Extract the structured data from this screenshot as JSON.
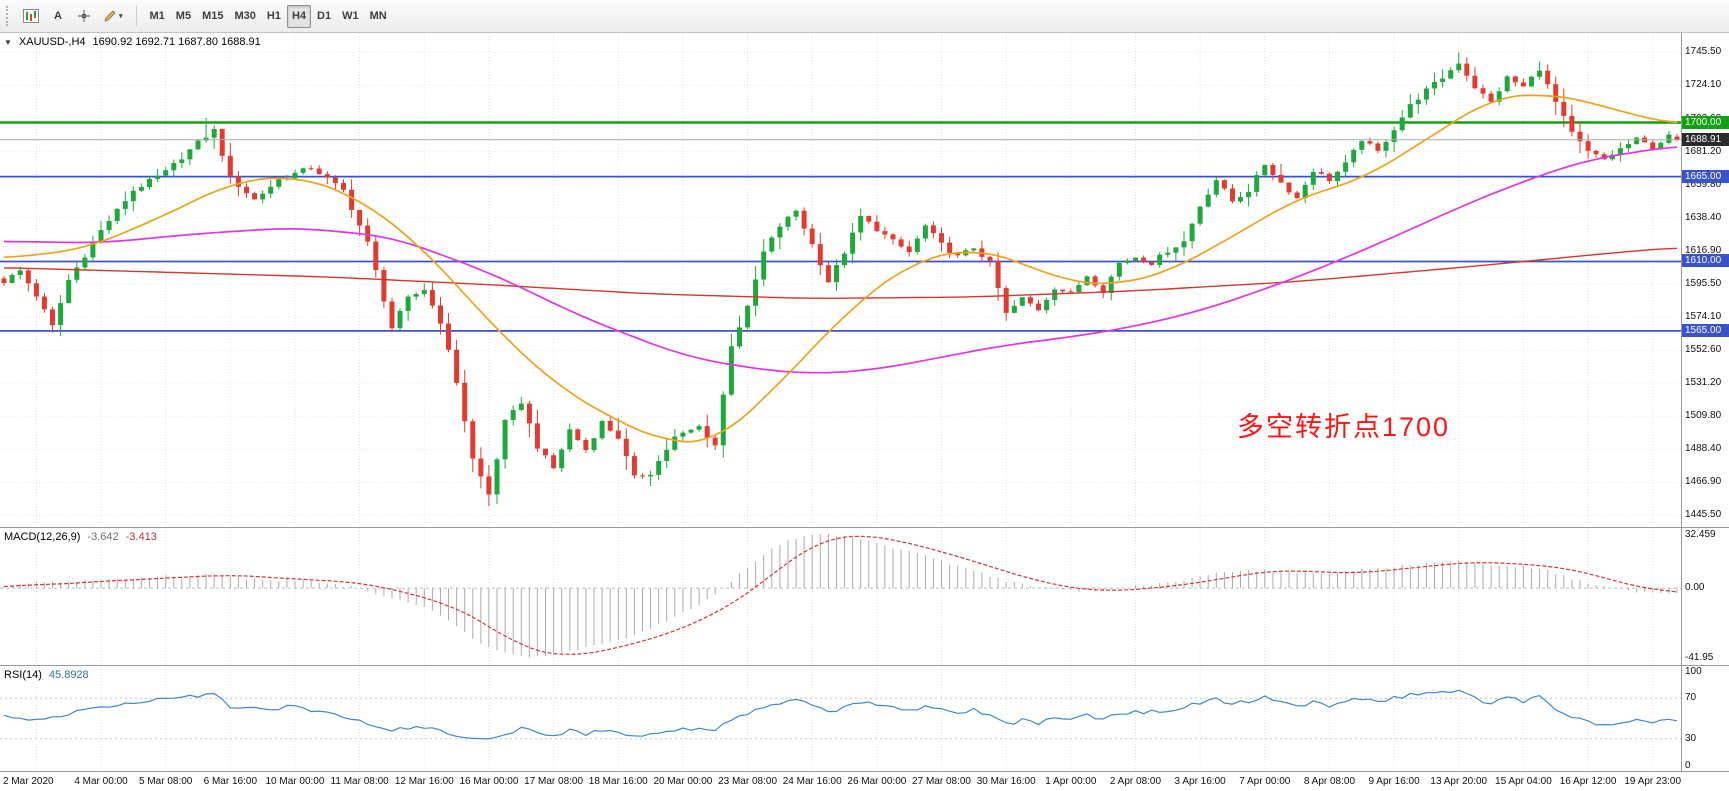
{
  "toolbar": {
    "text_tool_label": "A",
    "caret_glyph": "▾",
    "timeframes": [
      "M1",
      "M5",
      "M15",
      "M30",
      "H1",
      "H4",
      "D1",
      "W1",
      "MN"
    ],
    "active_timeframe": "H4"
  },
  "chart": {
    "dropdown_glyph": "▼",
    "symbol": "XAUUSD-,H4",
    "ohlc_text": "1690.92 1692.71 1687.80 1688.91",
    "annotation": {
      "text": "多空转折点1700",
      "color": "#fe1414"
    }
  },
  "levels": [
    {
      "price": 1700,
      "label": "1700.00",
      "color": "#11a211"
    },
    {
      "price": 1665,
      "label": "1665.00",
      "color": "#3a53cb"
    },
    {
      "price": 1610,
      "label": "1610.00",
      "color": "#3a53cb"
    },
    {
      "price": 1565,
      "label": "1565.00",
      "color": "#3a53cb"
    }
  ],
  "current_price": {
    "value": 1688.91,
    "label": "1688.91"
  },
  "price_axis": {
    "labels": [
      {
        "p": 1745.5,
        "t": "1745.50"
      },
      {
        "p": 1724.1,
        "t": "1724.10"
      },
      {
        "p": 1702.6,
        "t": "1702.60"
      },
      {
        "p": 1681.2,
        "t": "1681.20"
      },
      {
        "p": 1659.8,
        "t": "1659.80"
      },
      {
        "p": 1638.4,
        "t": "1638.40"
      },
      {
        "p": 1616.9,
        "t": "1616.90"
      },
      {
        "p": 1595.5,
        "t": "1595.50"
      },
      {
        "p": 1574.1,
        "t": "1574.10"
      },
      {
        "p": 1552.6,
        "t": "1552.60"
      },
      {
        "p": 1531.2,
        "t": "1531.20"
      },
      {
        "p": 1509.8,
        "t": "1509.80"
      },
      {
        "p": 1488.4,
        "t": "1488.40"
      },
      {
        "p": 1466.9,
        "t": "1466.90"
      },
      {
        "p": 1445.5,
        "t": "1445.50"
      }
    ]
  },
  "time_axis": {
    "labels": [
      "2 Mar 2020",
      "4 Mar 00:00",
      "5 Mar 08:00",
      "6 Mar 16:00",
      "10 Mar 00:00",
      "11 Mar 08:00",
      "12 Mar 16:00",
      "16 Mar 00:00",
      "17 Mar 08:00",
      "18 Mar 16:00",
      "20 Mar 00:00",
      "23 Mar 08:00",
      "24 Mar 16:00",
      "26 Mar 00:00",
      "27 Mar 08:00",
      "30 Mar 16:00",
      "1 Apr 00:00",
      "2 Apr 08:00",
      "3 Apr 16:00",
      "7 Apr 00:00",
      "8 Apr 08:00",
      "9 Apr 16:00",
      "13 Apr 20:00",
      "15 Apr 04:00",
      "16 Apr 12:00",
      "19 Apr 23:00"
    ]
  },
  "macd_panel": {
    "title": "MACD(12,26,9)",
    "value_main": "-3.642",
    "value_signal": "-3.413",
    "scale_labels": [
      {
        "v": 32.459,
        "t": "32.459"
      },
      {
        "v": 0,
        "t": "0.00"
      },
      {
        "v": -41.95,
        "t": "-41.95"
      }
    ]
  },
  "rsi_panel": {
    "title": "RSI(14)",
    "value": "45.8928",
    "levels": [
      70,
      30
    ],
    "scale_labels": [
      {
        "v": 100,
        "t": "100"
      },
      {
        "v": 70,
        "t": "70"
      },
      {
        "v": 30,
        "t": "30"
      },
      {
        "v": 0,
        "t": "0"
      }
    ]
  },
  "chart_data": {
    "type": "candlestick",
    "symbol": "XAUUSD-",
    "timeframe": "H4",
    "ohlc": {
      "open": 1690.92,
      "high": 1692.71,
      "low": 1687.8,
      "close": 1688.91
    },
    "num_candles": 208,
    "price_range": [
      1438,
      1758
    ],
    "y_ticks": [
      1745.5,
      1724.1,
      1702.6,
      1681.2,
      1659.8,
      1638.4,
      1616.9,
      1595.5,
      1574.1,
      1552.6,
      1531.2,
      1509.8,
      1488.4,
      1466.9,
      1445.5
    ],
    "x_tick_labels": [
      "2 Mar 2020",
      "4 Mar 00:00",
      "5 Mar 08:00",
      "6 Mar 16:00",
      "10 Mar 00:00",
      "11 Mar 08:00",
      "12 Mar 16:00",
      "16 Mar 00:00",
      "17 Mar 08:00",
      "18 Mar 16:00",
      "20 Mar 00:00",
      "23 Mar 08:00",
      "24 Mar 16:00",
      "26 Mar 00:00",
      "27 Mar 08:00",
      "30 Mar 16:00",
      "1 Apr 00:00",
      "2 Apr 08:00",
      "3 Apr 16:00",
      "7 Apr 00:00",
      "8 Apr 08:00",
      "9 Apr 16:00",
      "13 Apr 20:00",
      "15 Apr 04:00",
      "16 Apr 12:00",
      "19 Apr 23:00"
    ],
    "horizontal_levels": [
      1700,
      1665,
      1610,
      1565
    ],
    "close_keypoints": [
      [
        0,
        1597
      ],
      [
        2,
        1604
      ],
      [
        4,
        1588
      ],
      [
        6,
        1568
      ],
      [
        8,
        1598
      ],
      [
        12,
        1630
      ],
      [
        16,
        1656
      ],
      [
        20,
        1668
      ],
      [
        24,
        1687
      ],
      [
        26,
        1695
      ],
      [
        28,
        1664
      ],
      [
        31,
        1650
      ],
      [
        34,
        1663
      ],
      [
        38,
        1671
      ],
      [
        42,
        1656
      ],
      [
        45,
        1622
      ],
      [
        48,
        1567
      ],
      [
        50,
        1586
      ],
      [
        52,
        1592
      ],
      [
        54,
        1571
      ],
      [
        56,
        1532
      ],
      [
        58,
        1482
      ],
      [
        60,
        1459
      ],
      [
        62,
        1506
      ],
      [
        64,
        1519
      ],
      [
        66,
        1490
      ],
      [
        68,
        1476
      ],
      [
        70,
        1501
      ],
      [
        72,
        1488
      ],
      [
        74,
        1506
      ],
      [
        76,
        1496
      ],
      [
        78,
        1470
      ],
      [
        80,
        1473
      ],
      [
        83,
        1496
      ],
      [
        86,
        1503
      ],
      [
        88,
        1491
      ],
      [
        90,
        1556
      ],
      [
        92,
        1580
      ],
      [
        94,
        1616
      ],
      [
        96,
        1633
      ],
      [
        98,
        1643
      ],
      [
        100,
        1621
      ],
      [
        102,
        1597
      ],
      [
        104,
        1616
      ],
      [
        106,
        1639
      ],
      [
        108,
        1631
      ],
      [
        110,
        1623
      ],
      [
        112,
        1616
      ],
      [
        114,
        1633
      ],
      [
        116,
        1621
      ],
      [
        118,
        1613
      ],
      [
        120,
        1619
      ],
      [
        122,
        1609
      ],
      [
        124,
        1576
      ],
      [
        126,
        1586
      ],
      [
        128,
        1579
      ],
      [
        130,
        1593
      ],
      [
        132,
        1589
      ],
      [
        134,
        1601
      ],
      [
        136,
        1591
      ],
      [
        138,
        1609
      ],
      [
        140,
        1613
      ],
      [
        142,
        1609
      ],
      [
        144,
        1617
      ],
      [
        146,
        1623
      ],
      [
        148,
        1646
      ],
      [
        150,
        1663
      ],
      [
        152,
        1649
      ],
      [
        154,
        1656
      ],
      [
        156,
        1673
      ],
      [
        158,
        1661
      ],
      [
        160,
        1651
      ],
      [
        162,
        1669
      ],
      [
        164,
        1663
      ],
      [
        166,
        1673
      ],
      [
        168,
        1689
      ],
      [
        170,
        1681
      ],
      [
        172,
        1696
      ],
      [
        174,
        1711
      ],
      [
        176,
        1721
      ],
      [
        178,
        1729
      ],
      [
        180,
        1739
      ],
      [
        182,
        1723
      ],
      [
        184,
        1713
      ],
      [
        186,
        1729
      ],
      [
        188,
        1723
      ],
      [
        190,
        1735
      ],
      [
        192,
        1713
      ],
      [
        194,
        1693
      ],
      [
        196,
        1681
      ],
      [
        198,
        1676
      ],
      [
        200,
        1683
      ],
      [
        202,
        1689
      ],
      [
        204,
        1684
      ],
      [
        206,
        1691
      ],
      [
        207,
        1688.9
      ]
    ],
    "ma_fast_keypoints": [
      [
        0,
        1612
      ],
      [
        10,
        1618
      ],
      [
        20,
        1640
      ],
      [
        28,
        1661
      ],
      [
        36,
        1666
      ],
      [
        44,
        1651
      ],
      [
        52,
        1618
      ],
      [
        60,
        1571
      ],
      [
        68,
        1531
      ],
      [
        76,
        1506
      ],
      [
        82,
        1493
      ],
      [
        88,
        1492
      ],
      [
        96,
        1531
      ],
      [
        104,
        1576
      ],
      [
        112,
        1609
      ],
      [
        120,
        1619
      ],
      [
        126,
        1609
      ],
      [
        132,
        1596
      ],
      [
        138,
        1595
      ],
      [
        144,
        1603
      ],
      [
        152,
        1626
      ],
      [
        160,
        1651
      ],
      [
        168,
        1663
      ],
      [
        176,
        1689
      ],
      [
        184,
        1716
      ],
      [
        190,
        1719
      ],
      [
        196,
        1714
      ],
      [
        202,
        1704
      ],
      [
        207,
        1699
      ]
    ],
    "ma_mid_keypoints": [
      [
        0,
        1623
      ],
      [
        12,
        1622
      ],
      [
        24,
        1628
      ],
      [
        36,
        1632
      ],
      [
        48,
        1626
      ],
      [
        60,
        1603
      ],
      [
        72,
        1573
      ],
      [
        84,
        1549
      ],
      [
        92,
        1541
      ],
      [
        100,
        1537
      ],
      [
        108,
        1540
      ],
      [
        116,
        1548
      ],
      [
        124,
        1556
      ],
      [
        132,
        1561
      ],
      [
        140,
        1568
      ],
      [
        148,
        1578
      ],
      [
        156,
        1592
      ],
      [
        164,
        1608
      ],
      [
        172,
        1626
      ],
      [
        180,
        1645
      ],
      [
        188,
        1662
      ],
      [
        196,
        1676
      ],
      [
        207,
        1685
      ]
    ],
    "ma_slow_keypoints": [
      [
        0,
        1606
      ],
      [
        20,
        1603
      ],
      [
        40,
        1600
      ],
      [
        60,
        1595
      ],
      [
        80,
        1589
      ],
      [
        100,
        1586
      ],
      [
        120,
        1587
      ],
      [
        140,
        1591
      ],
      [
        160,
        1597
      ],
      [
        180,
        1606
      ],
      [
        200,
        1616
      ],
      [
        207,
        1619
      ]
    ],
    "macd_keypoints": [
      [
        0,
        1
      ],
      [
        4,
        3
      ],
      [
        8,
        4
      ],
      [
        12,
        5
      ],
      [
        16,
        6
      ],
      [
        20,
        7
      ],
      [
        24,
        8
      ],
      [
        28,
        7
      ],
      [
        32,
        5
      ],
      [
        36,
        5
      ],
      [
        40,
        3
      ],
      [
        44,
        0
      ],
      [
        48,
        -6
      ],
      [
        52,
        -11
      ],
      [
        56,
        -22
      ],
      [
        58,
        -30
      ],
      [
        60,
        -36
      ],
      [
        64,
        -40
      ],
      [
        66,
        -41.5
      ],
      [
        70,
        -38
      ],
      [
        74,
        -33
      ],
      [
        78,
        -28
      ],
      [
        82,
        -20
      ],
      [
        86,
        -10
      ],
      [
        88,
        -4
      ],
      [
        90,
        4
      ],
      [
        92,
        12
      ],
      [
        94,
        20
      ],
      [
        96,
        26
      ],
      [
        98,
        30
      ],
      [
        100,
        32
      ],
      [
        102,
        32.4
      ],
      [
        104,
        31
      ],
      [
        108,
        27
      ],
      [
        112,
        22
      ],
      [
        116,
        16
      ],
      [
        120,
        10
      ],
      [
        124,
        4
      ],
      [
        128,
        0
      ],
      [
        132,
        -2
      ],
      [
        136,
        -1
      ],
      [
        140,
        1
      ],
      [
        144,
        3
      ],
      [
        148,
        7
      ],
      [
        152,
        10
      ],
      [
        156,
        11
      ],
      [
        160,
        9
      ],
      [
        164,
        9
      ],
      [
        168,
        11
      ],
      [
        172,
        13
      ],
      [
        176,
        15
      ],
      [
        180,
        16
      ],
      [
        184,
        14
      ],
      [
        188,
        13
      ],
      [
        190,
        12
      ],
      [
        192,
        9
      ],
      [
        194,
        6
      ],
      [
        196,
        3
      ],
      [
        198,
        1
      ],
      [
        200,
        -1
      ],
      [
        202,
        -2
      ],
      [
        204,
        -3
      ],
      [
        207,
        -3.64
      ]
    ],
    "rsi_keypoints": [
      [
        0,
        52
      ],
      [
        4,
        48
      ],
      [
        8,
        55
      ],
      [
        12,
        60
      ],
      [
        16,
        65
      ],
      [
        20,
        70
      ],
      [
        22,
        73
      ],
      [
        24,
        71
      ],
      [
        26,
        74
      ],
      [
        28,
        62
      ],
      [
        32,
        58
      ],
      [
        36,
        62
      ],
      [
        40,
        55
      ],
      [
        44,
        48
      ],
      [
        48,
        38
      ],
      [
        52,
        42
      ],
      [
        56,
        32
      ],
      [
        60,
        28
      ],
      [
        62,
        35
      ],
      [
        64,
        40
      ],
      [
        66,
        36
      ],
      [
        68,
        33
      ],
      [
        70,
        38
      ],
      [
        72,
        35
      ],
      [
        74,
        38
      ],
      [
        76,
        36
      ],
      [
        78,
        32
      ],
      [
        80,
        34
      ],
      [
        84,
        40
      ],
      [
        88,
        38
      ],
      [
        90,
        50
      ],
      [
        92,
        55
      ],
      [
        94,
        62
      ],
      [
        96,
        66
      ],
      [
        98,
        70
      ],
      [
        100,
        63
      ],
      [
        102,
        57
      ],
      [
        104,
        61
      ],
      [
        106,
        66
      ],
      [
        108,
        63
      ],
      [
        110,
        60
      ],
      [
        112,
        58
      ],
      [
        114,
        62
      ],
      [
        116,
        59
      ],
      [
        118,
        56
      ],
      [
        120,
        58
      ],
      [
        122,
        54
      ],
      [
        124,
        44
      ],
      [
        126,
        48
      ],
      [
        128,
        46
      ],
      [
        130,
        51
      ],
      [
        132,
        49
      ],
      [
        134,
        53
      ],
      [
        136,
        49
      ],
      [
        138,
        55
      ],
      [
        140,
        56
      ],
      [
        144,
        58
      ],
      [
        148,
        66
      ],
      [
        150,
        70
      ],
      [
        152,
        64
      ],
      [
        156,
        71
      ],
      [
        158,
        66
      ],
      [
        160,
        61
      ],
      [
        162,
        66
      ],
      [
        164,
        63
      ],
      [
        166,
        66
      ],
      [
        168,
        70
      ],
      [
        170,
        66
      ],
      [
        172,
        70
      ],
      [
        174,
        73
      ],
      [
        176,
        75
      ],
      [
        180,
        78
      ],
      [
        182,
        70
      ],
      [
        184,
        65
      ],
      [
        186,
        70
      ],
      [
        188,
        67
      ],
      [
        190,
        71
      ],
      [
        192,
        60
      ],
      [
        194,
        52
      ],
      [
        196,
        46
      ],
      [
        198,
        44
      ],
      [
        200,
        47
      ],
      [
        202,
        49
      ],
      [
        204,
        45
      ],
      [
        206,
        48
      ],
      [
        207,
        45.89
      ]
    ],
    "wick_overrides": [
      {
        "i": 6,
        "low": 1564
      },
      {
        "i": 25,
        "high": 1703
      },
      {
        "i": 60,
        "low": 1451.5
      },
      {
        "i": 180,
        "high": 1745.5
      },
      {
        "i": 190,
        "high": 1739.5
      }
    ],
    "indicators": {
      "macd": {
        "label": "MACD(12,26,9)",
        "value": -3.642,
        "signal": -3.413,
        "range": [
          -41.95,
          32.459
        ]
      },
      "rsi": {
        "label": "RSI(14)",
        "value": 45.8928,
        "levels": [
          70,
          30
        ],
        "range": [
          0,
          100
        ]
      }
    },
    "colors": {
      "bull": "#1fa83c",
      "bear": "#e23b32",
      "ma_fast": "#efa21c",
      "ma_mid": "#e236e2",
      "ma_slow": "#d5372d",
      "macd_hist": "#ababab",
      "macd_signal": "#d5372d",
      "rsi": "#3f87cf",
      "level_green": "#11a211",
      "level_blue": "#3a53cb",
      "bid_line": "#aaaaaa"
    }
  }
}
